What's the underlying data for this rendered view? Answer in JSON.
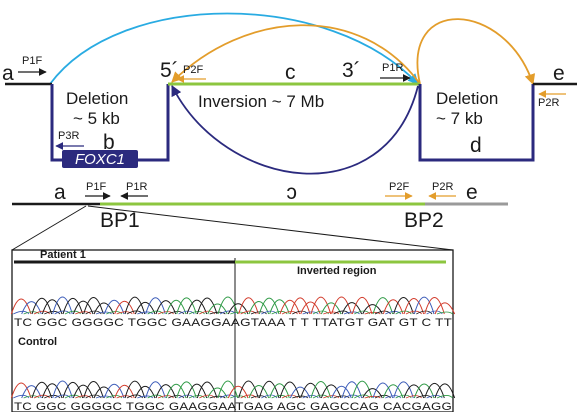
{
  "colors": {
    "black": "#1a1a1a",
    "navy": "#2b2a7e",
    "green": "#8cc63f",
    "blue": "#29abe2",
    "orange": "#e39d2b",
    "gray": "#9a9a9a",
    "trace_a": "#2e9a45",
    "trace_c": "#3b5bb8",
    "trace_g": "#1a1a1a",
    "trace_t": "#d23a2a"
  },
  "top": {
    "seg_a": "a",
    "seg_b": "b",
    "seg_c": "c",
    "seg_d": "d",
    "seg_e": "e",
    "five_prime": "5´",
    "three_prime": "3´",
    "deletion1_title": "Deletion",
    "deletion1_size": "~ 5 kb",
    "deletion2_title": "Deletion",
    "deletion2_size": "~ 7 kb",
    "inversion": "Inversion ~ 7 Mb",
    "gene": "FOXC1",
    "primers": {
      "p1f": "P1F",
      "p2f": "P2F",
      "p3r": "P3R",
      "p1r": "P1R",
      "p2r": "P2R"
    }
  },
  "rearranged": {
    "seg_a": "a",
    "seg_c_inverted": "c",
    "seg_e": "e",
    "p1f": "P1F",
    "p1r": "P1R",
    "p2f": "P2F",
    "p2r": "P2R",
    "bp1": "BP1",
    "bp2": "BP2"
  },
  "chromatogram": {
    "patient_label": "Patient 1",
    "inverted_label": "Inverted region",
    "control_label": "Control",
    "patient_seq": "TC GGC GGGGC TGGC GAAGGAAGTAAA T T TTATGT GAT GT C TT",
    "control_seq": "TC GGC GGGGC TGGC GAAGGAATGAG AGC GAGCCAG CACGAGG"
  }
}
